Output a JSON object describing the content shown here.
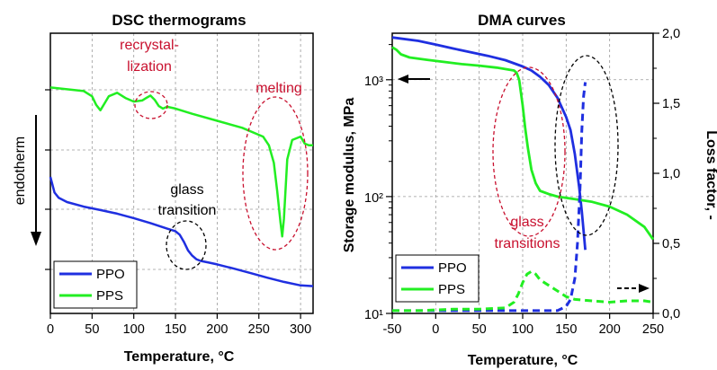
{
  "chart_data": [
    {
      "type": "line",
      "title": "DSC thermograms",
      "xlabel": "Temperature, °C",
      "ylabel": "endotherm",
      "xlim": [
        0,
        315
      ],
      "xticks": [
        "0",
        "50",
        "100",
        "150",
        "200",
        "250",
        "300"
      ],
      "grid": true,
      "legend": "bottom-left",
      "colors": {
        "PPO": "#1f2fe0",
        "PPS": "#22ee22",
        "annotation_red": "#c8102e",
        "annotation_black": "#000000"
      },
      "series": [
        {
          "name": "PPO",
          "x": [
            0,
            5,
            10,
            20,
            40,
            60,
            80,
            100,
            120,
            140,
            150,
            155,
            160,
            165,
            170,
            175,
            180,
            190,
            200,
            220,
            240,
            260,
            280,
            300,
            315
          ],
          "y": [
            5.4,
            4.95,
            4.8,
            4.68,
            4.55,
            4.45,
            4.35,
            4.22,
            4.08,
            3.92,
            3.85,
            3.75,
            3.55,
            3.3,
            3.15,
            3.05,
            3.0,
            2.95,
            2.9,
            2.78,
            2.65,
            2.52,
            2.4,
            2.3,
            2.28
          ]
        },
        {
          "name": "PPS",
          "x": [
            0,
            20,
            40,
            50,
            55,
            60,
            65,
            70,
            80,
            90,
            100,
            110,
            115,
            120,
            125,
            130,
            135,
            140,
            150,
            170,
            200,
            230,
            255,
            262,
            268,
            272,
            276,
            278,
            280,
            284,
            290,
            300,
            305,
            310,
            315
          ],
          "y": [
            7.95,
            7.9,
            7.85,
            7.7,
            7.45,
            7.3,
            7.5,
            7.7,
            7.8,
            7.65,
            7.55,
            7.58,
            7.65,
            7.72,
            7.6,
            7.42,
            7.35,
            7.4,
            7.35,
            7.2,
            7.0,
            6.8,
            6.55,
            6.3,
            5.8,
            5.0,
            4.1,
            3.7,
            4.2,
            5.9,
            6.45,
            6.55,
            6.35,
            6.3,
            6.3
          ]
        }
      ],
      "annotations": [
        "recrystal-",
        "lization",
        "melting",
        "glass",
        "transition"
      ]
    },
    {
      "type": "line",
      "title": "DMA curves",
      "xlabel": "Temperature, °C",
      "ylabel": "Storage modulus, MPa",
      "y2label": "Loss factor, -",
      "xlim": [
        -50,
        250
      ],
      "xticks": [
        "-50",
        "0",
        "50",
        "100",
        "150",
        "200",
        "250"
      ],
      "ylim": [
        10,
        2500
      ],
      "yscale": "log",
      "yticks": [
        "10¹",
        "10²",
        "10³"
      ],
      "y2lim": [
        0,
        2.0
      ],
      "y2ticks": [
        "0,0",
        "0,5",
        "1,0",
        "1,5",
        "2,0"
      ],
      "grid": true,
      "legend": "bottom-left",
      "colors": {
        "PPO": "#1f2fe0",
        "PPS": "#22ee22",
        "annotation_red": "#c8102e",
        "annotation_black": "#000000"
      },
      "series": [
        {
          "name": "PPO",
          "axis": "left",
          "style": "solid",
          "x": [
            -50,
            -20,
            0,
            20,
            40,
            60,
            80,
            100,
            110,
            120,
            130,
            140,
            150,
            155,
            160,
            165,
            168,
            172
          ],
          "y": [
            2300,
            2150,
            2000,
            1850,
            1720,
            1600,
            1470,
            1300,
            1200,
            1060,
            900,
            700,
            480,
            370,
            230,
            120,
            75,
            35
          ]
        },
        {
          "name": "PPS",
          "axis": "left",
          "style": "solid",
          "x": [
            -50,
            -45,
            -40,
            -30,
            -10,
            10,
            30,
            50,
            70,
            90,
            93,
            96,
            100,
            103,
            106,
            110,
            115,
            120,
            130,
            140,
            160,
            180,
            200,
            220,
            240,
            250
          ],
          "y": [
            1900,
            1800,
            1650,
            1550,
            1480,
            1420,
            1360,
            1320,
            1270,
            1200,
            1150,
            1000,
            600,
            380,
            260,
            170,
            130,
            112,
            105,
            100,
            95,
            90,
            82,
            70,
            55,
            43
          ]
        },
        {
          "axis": "right",
          "style": "dashed",
          "x": [
            -50,
            0,
            50,
            100,
            140,
            150,
            155,
            160,
            163,
            166,
            168,
            170,
            172
          ],
          "y": [
            0.02,
            0.02,
            0.02,
            0.02,
            0.02,
            0.05,
            0.1,
            0.25,
            0.5,
            0.9,
            1.3,
            1.55,
            1.65
          ]
        },
        {
          "axis": "right",
          "style": "dashed",
          "x": [
            -50,
            -20,
            20,
            50,
            80,
            90,
            95,
            100,
            105,
            110,
            115,
            120,
            130,
            140,
            150,
            160,
            180,
            200,
            220,
            240,
            250
          ],
          "y": [
            0.02,
            0.02,
            0.03,
            0.03,
            0.04,
            0.08,
            0.14,
            0.22,
            0.28,
            0.3,
            0.28,
            0.24,
            0.2,
            0.16,
            0.12,
            0.1,
            0.09,
            0.08,
            0.09,
            0.09,
            0.08
          ]
        }
      ],
      "annotations": [
        "glass",
        "transitions"
      ]
    }
  ]
}
